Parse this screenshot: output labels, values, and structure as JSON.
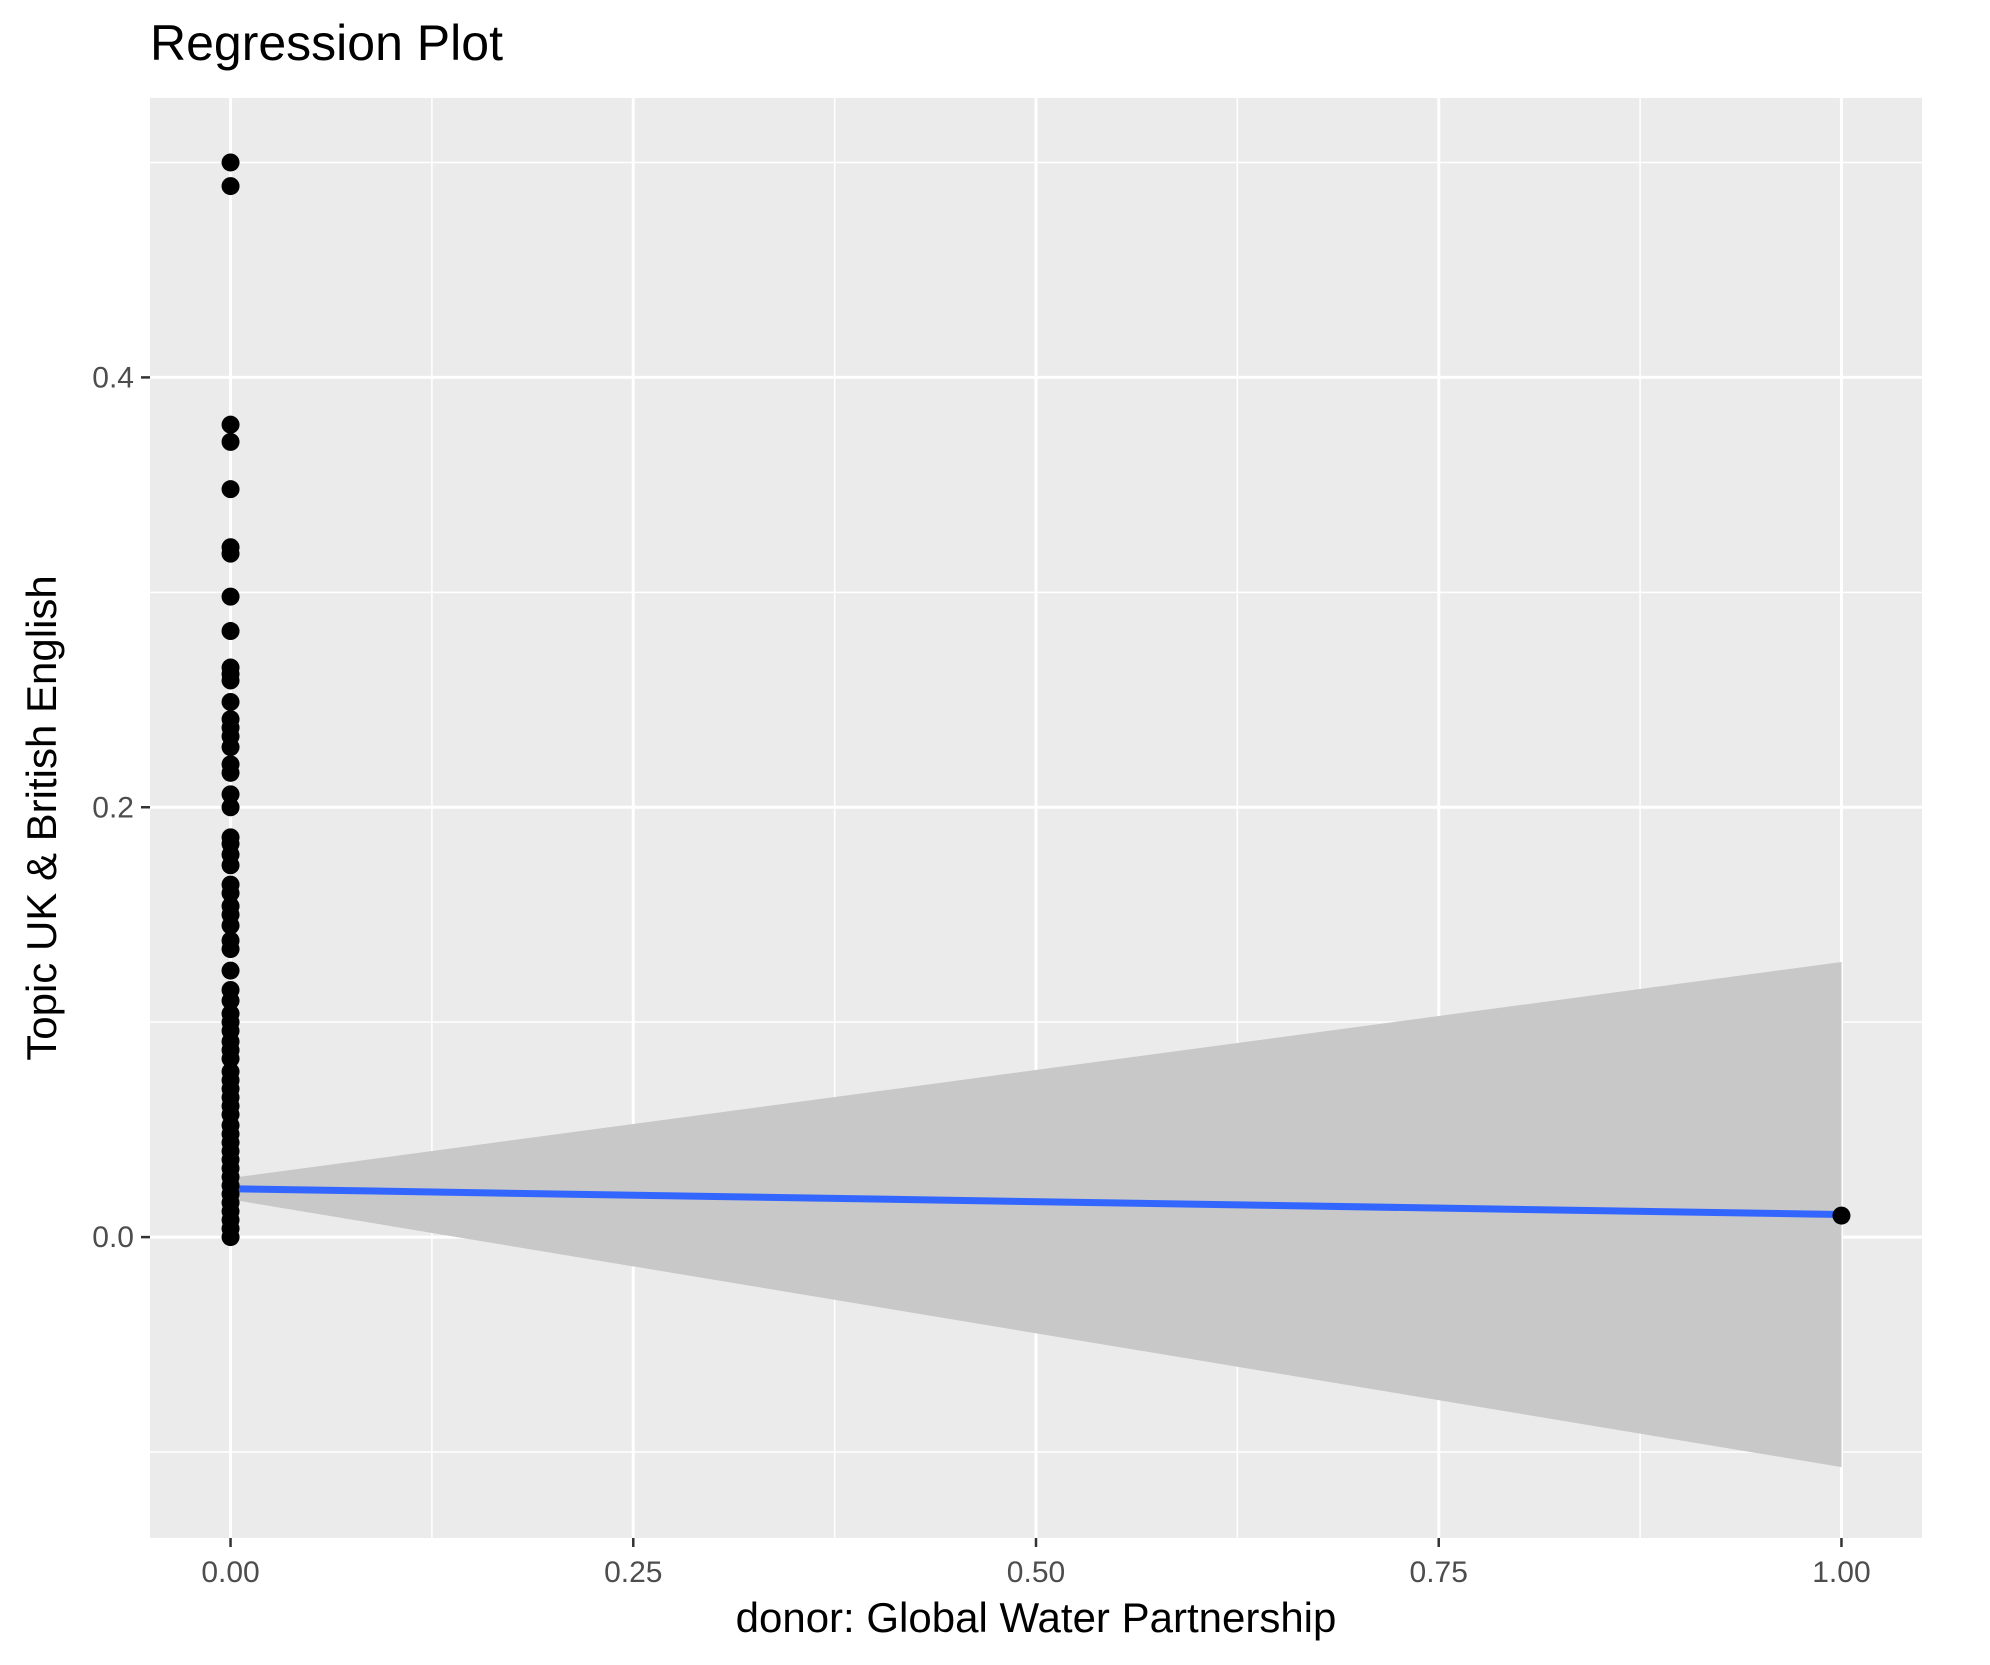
{
  "chart_data": {
    "type": "scatter",
    "title": "Regression Plot",
    "xlabel": "donor: Global Water Partnership",
    "ylabel": "Topic UK & British English",
    "xlim": [
      -0.05,
      1.05
    ],
    "ylim": [
      -0.14,
      0.53
    ],
    "x_ticks": [
      0.0,
      0.25,
      0.5,
      0.75,
      1.0
    ],
    "x_tick_labels": [
      "0.00",
      "0.25",
      "0.50",
      "0.75",
      "1.00"
    ],
    "y_ticks": [
      0.0,
      0.2,
      0.4
    ],
    "y_tick_labels": [
      "0.0",
      "0.2",
      "0.4"
    ],
    "grid": true,
    "points": [
      {
        "x": 0,
        "y": 0.5
      },
      {
        "x": 0,
        "y": 0.489
      },
      {
        "x": 0,
        "y": 0.378
      },
      {
        "x": 0,
        "y": 0.37
      },
      {
        "x": 0,
        "y": 0.348
      },
      {
        "x": 0,
        "y": 0.321
      },
      {
        "x": 0,
        "y": 0.318
      },
      {
        "x": 0,
        "y": 0.298
      },
      {
        "x": 0,
        "y": 0.282
      },
      {
        "x": 0,
        "y": 0.265
      },
      {
        "x": 0,
        "y": 0.262
      },
      {
        "x": 0,
        "y": 0.259
      },
      {
        "x": 0,
        "y": 0.249
      },
      {
        "x": 0,
        "y": 0.241
      },
      {
        "x": 0,
        "y": 0.237
      },
      {
        "x": 0,
        "y": 0.233
      },
      {
        "x": 0,
        "y": 0.228
      },
      {
        "x": 0,
        "y": 0.22
      },
      {
        "x": 0,
        "y": 0.216
      },
      {
        "x": 0,
        "y": 0.206
      },
      {
        "x": 0,
        "y": 0.2
      },
      {
        "x": 0,
        "y": 0.186
      },
      {
        "x": 0,
        "y": 0.183
      },
      {
        "x": 0,
        "y": 0.178
      },
      {
        "x": 0,
        "y": 0.173
      },
      {
        "x": 0,
        "y": 0.164
      },
      {
        "x": 0,
        "y": 0.16
      },
      {
        "x": 0,
        "y": 0.154
      },
      {
        "x": 0,
        "y": 0.15
      },
      {
        "x": 0,
        "y": 0.145
      },
      {
        "x": 0,
        "y": 0.138
      },
      {
        "x": 0,
        "y": 0.134
      },
      {
        "x": 0,
        "y": 0.124
      },
      {
        "x": 0,
        "y": 0.115
      },
      {
        "x": 0,
        "y": 0.11
      },
      {
        "x": 0,
        "y": 0.104
      },
      {
        "x": 0,
        "y": 0.1
      },
      {
        "x": 0,
        "y": 0.096
      },
      {
        "x": 0,
        "y": 0.091
      },
      {
        "x": 0,
        "y": 0.087
      },
      {
        "x": 0,
        "y": 0.083
      },
      {
        "x": 0,
        "y": 0.077
      },
      {
        "x": 0,
        "y": 0.073
      },
      {
        "x": 0,
        "y": 0.069
      },
      {
        "x": 0,
        "y": 0.065
      },
      {
        "x": 0,
        "y": 0.061
      },
      {
        "x": 0,
        "y": 0.057
      },
      {
        "x": 0,
        "y": 0.052
      },
      {
        "x": 0,
        "y": 0.048
      },
      {
        "x": 0,
        "y": 0.044
      },
      {
        "x": 0,
        "y": 0.04
      },
      {
        "x": 0,
        "y": 0.036
      },
      {
        "x": 0,
        "y": 0.032
      },
      {
        "x": 0,
        "y": 0.028
      },
      {
        "x": 0,
        "y": 0.024
      },
      {
        "x": 0,
        "y": 0.02
      },
      {
        "x": 0,
        "y": 0.016
      },
      {
        "x": 0,
        "y": 0.012
      },
      {
        "x": 0,
        "y": 0.008
      },
      {
        "x": 0,
        "y": 0.004
      },
      {
        "x": 0,
        "y": 0.0
      },
      {
        "x": 1,
        "y": 0.01
      }
    ],
    "regression": {
      "x": [
        0,
        1
      ],
      "y": [
        0.0225,
        0.0105
      ]
    },
    "confidence_band": {
      "x": [
        0,
        1
      ],
      "lower": [
        0.0175,
        -0.107
      ],
      "upper": [
        0.0275,
        0.128
      ]
    },
    "colors": {
      "panel_background": "#ebebeb",
      "grid_major": "#ffffff",
      "points": "#000000",
      "regression_line": "#3366ff",
      "confidence_band": "#c8c8c8",
      "tick_marks": "#333333"
    }
  }
}
